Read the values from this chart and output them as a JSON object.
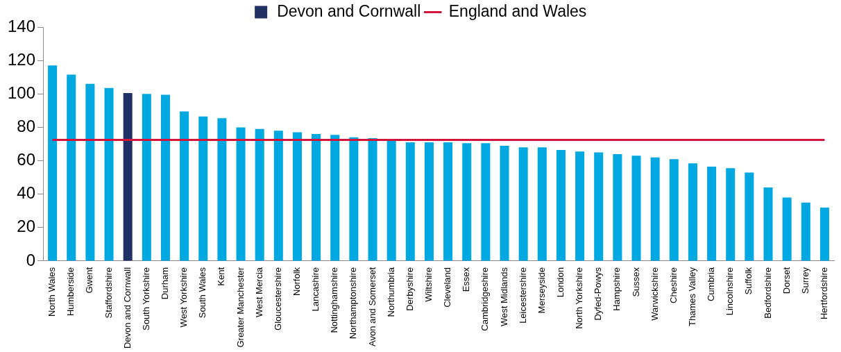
{
  "chart_data": {
    "type": "bar",
    "categories": [
      "North Wales",
      "Humberside",
      "Gwent",
      "Staffordshire",
      "Devon and Cornwall",
      "South Yorkshire",
      "Durham",
      "West Yorkshire",
      "South Wales",
      "Kent",
      "Greater Manchester",
      "West Mercia",
      "Gloucestershire",
      "Norfolk",
      "Lancashire",
      "Nottinghamshire",
      "Northamptonshire",
      "Avon and Somerset",
      "Northumbria",
      "Derbyshire",
      "Wiltshire",
      "Cleveland",
      "Essex",
      "Cambridgeshire",
      "West Midlands",
      "Leicestershire",
      "Merseyside",
      "London",
      "North Yorkshire",
      "Dyfed-Powys",
      "Hampshire",
      "Sussex",
      "Warwickshire",
      "Cheshire",
      "Thames Valley",
      "Cumbria",
      "Lincolnshire",
      "Suffolk",
      "Bedfordshire",
      "Dorset",
      "Surrey",
      "Hertfordshire"
    ],
    "series": [
      {
        "color": "#00a8e2",
        "values": [
          117,
          111.5,
          106,
          103.5,
          null,
          100,
          99.5,
          89.5,
          86.5,
          85.5,
          80,
          79,
          78,
          77,
          76,
          75.5,
          74,
          73.5,
          72,
          71,
          71,
          71,
          70.5,
          70.5,
          69,
          68,
          68,
          66.5,
          65.5,
          65,
          64,
          63,
          62,
          61,
          58.5,
          56.5,
          55.5,
          53,
          44,
          38,
          35,
          32
        ]
      },
      {
        "name": "Devon and Cornwall",
        "color": "#213065",
        "values": [
          null,
          null,
          null,
          null,
          100.5,
          null,
          null,
          null,
          null,
          null,
          null,
          null,
          null,
          null,
          null,
          null,
          null,
          null,
          null,
          null,
          null,
          null,
          null,
          null,
          null,
          null,
          null,
          null,
          null,
          null,
          null,
          null,
          null,
          null,
          null,
          null,
          null,
          null,
          null,
          null,
          null,
          null
        ]
      },
      {
        "type": "line",
        "name": "England and Wales",
        "color": "#d2143a",
        "values": [
          72.5,
          72.5,
          72.5,
          72.5,
          72.5,
          72.5,
          72.5,
          72.5,
          72.5,
          72.5,
          72.5,
          72.5,
          72.5,
          72.5,
          72.5,
          72.5,
          72.5,
          72.5,
          72.5,
          72.5,
          72.5,
          72.5,
          72.5,
          72.5,
          72.5,
          72.5,
          72.5,
          72.5,
          72.5,
          72.5,
          72.5,
          72.5,
          72.5,
          72.5,
          72.5,
          72.5,
          72.5,
          72.5,
          72.5,
          72.5,
          72.5,
          72.5
        ]
      }
    ],
    "ylim": [
      0,
      140
    ],
    "yticks": [
      0,
      20,
      40,
      60,
      80,
      100,
      120,
      140
    ],
    "grid": false,
    "legend": "top",
    "marker": "none"
  }
}
